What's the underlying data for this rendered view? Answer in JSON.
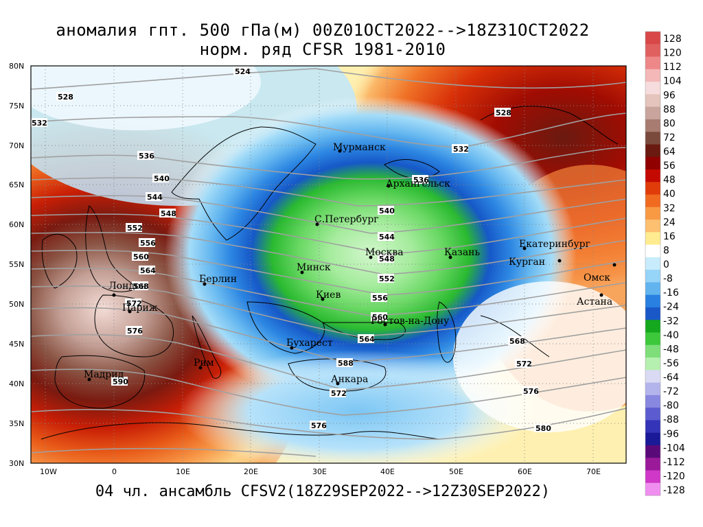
{
  "title_line1": "аномалия гпт. 500 гПа(м) 00Z01OCT2022-->18Z31OCT2022",
  "title_line2": "норм. ряд CFSR 1981-2010",
  "bottom_line": "04 чл. ансамбль CFSV2(18Z29SEP2022-->12Z30SEP2022)",
  "lat_ticks": [
    "80N",
    "75N",
    "70N",
    "65N",
    "60N",
    "55N",
    "50N",
    "45N",
    "40N",
    "35N",
    "30N"
  ],
  "lon_ticks": [
    "10W",
    "0",
    "10E",
    "20E",
    "30E",
    "40E",
    "50E",
    "60E",
    "70E"
  ],
  "cities": [
    {
      "name": "Мурманск"
    },
    {
      "name": "Архангельск"
    },
    {
      "name": "С.Петербург"
    },
    {
      "name": "Москва"
    },
    {
      "name": "Казань"
    },
    {
      "name": "Екатеринбург"
    },
    {
      "name": "Курган"
    },
    {
      "name": "Омск"
    },
    {
      "name": "Астана"
    },
    {
      "name": "Минск"
    },
    {
      "name": "Киев"
    },
    {
      "name": "Ростов-на-Дону"
    },
    {
      "name": "Бухарест"
    },
    {
      "name": "Анкара"
    },
    {
      "name": "Берлин"
    },
    {
      "name": "Лондон"
    },
    {
      "name": "Париж"
    },
    {
      "name": "Рим"
    },
    {
      "name": "Мадрид"
    }
  ],
  "isolines": [
    "524",
    "528",
    "532",
    "536",
    "540",
    "544",
    "548",
    "552",
    "556",
    "560",
    "564",
    "568",
    "572",
    "576",
    "580",
    "588",
    "590"
  ],
  "colorbar": {
    "labels": [
      "128",
      "120",
      "112",
      "104",
      "96",
      "88",
      "80",
      "72",
      "64",
      "56",
      "48",
      "40",
      "32",
      "24",
      "16",
      "8",
      "0",
      "-8",
      "-16",
      "-24",
      "-32",
      "-40",
      "-48",
      "-56",
      "-64",
      "-72",
      "-80",
      "-88",
      "-96",
      "-104",
      "-112",
      "-120",
      "-128"
    ],
    "colors": [
      "#d84848",
      "#e06060",
      "#ee8888",
      "#f4b8b8",
      "#f6dcdc",
      "#e4c4bc",
      "#c8a49c",
      "#a87c70",
      "#7a4a3c",
      "#6a1a10",
      "#900000",
      "#c40a00",
      "#e03c0a",
      "#f06a20",
      "#f89a44",
      "#fcc070",
      "#ffec90",
      "#ffffff",
      "#c8ecfc",
      "#96d4f8",
      "#62b4ee",
      "#2a80e0",
      "#1a58c8",
      "#14a81e",
      "#3cc83a",
      "#7ede7a",
      "#b6f0b0",
      "#dadaf4",
      "#b4b4ec",
      "#8888e0",
      "#5c5cd0",
      "#3434b8",
      "#1a1a98",
      "#5a0a78",
      "#9a1a9a",
      "#d038c8",
      "#f08ef0"
    ]
  }
}
